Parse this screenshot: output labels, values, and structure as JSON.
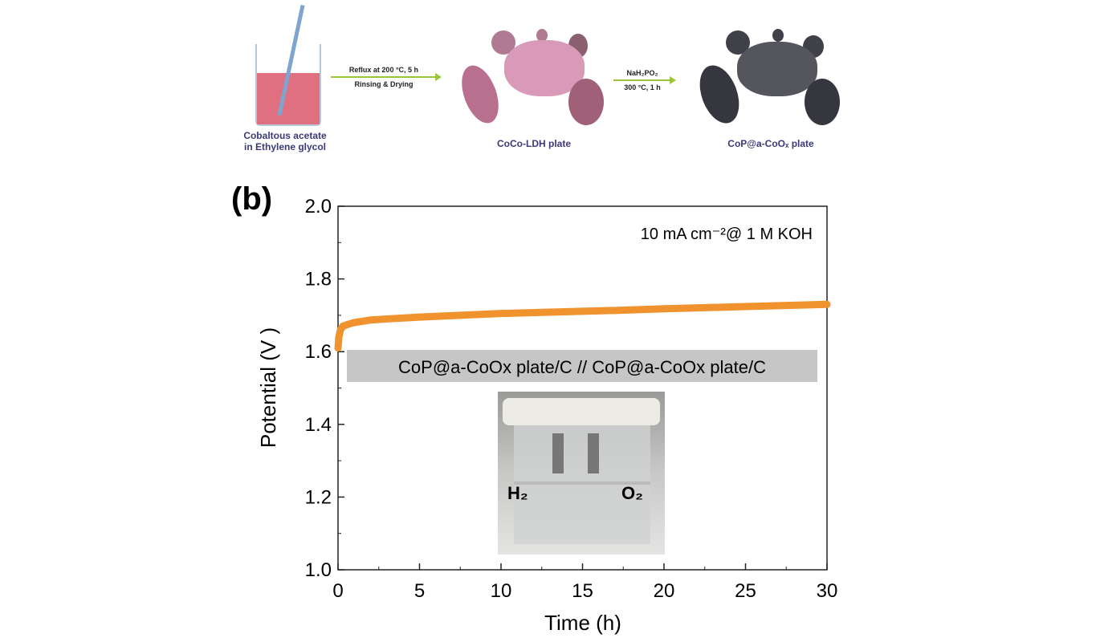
{
  "schematic": {
    "beaker_label": [
      "Cobaltous acetate",
      "in Ethylene glycol"
    ],
    "step1": [
      "Reflux at 200 °C, 5 h",
      "Rinsing & Drying"
    ],
    "intermediate_label": "CoCo-LDH plate",
    "step2": [
      "NaH₂PO₂",
      "300 °C, 1 h"
    ],
    "product_label": "CoP@a-CoOₓ plate",
    "colors": {
      "ldh": "#c98aa6",
      "product": "#3c3c44",
      "arrow": "#9ac43a",
      "liquid": "#e0707f"
    }
  },
  "panel_label": "(b)",
  "chart_data": {
    "type": "line",
    "xlabel": "Time (h)",
    "ylabel": "Potential (V )",
    "xlim": [
      0,
      30
    ],
    "ylim": [
      1.0,
      2.0
    ],
    "xticks": [
      "0",
      "5",
      "10",
      "15",
      "20",
      "25",
      "30"
    ],
    "yticks": [
      "1.0",
      "1.2",
      "1.4",
      "1.6",
      "1.8",
      "2.0"
    ],
    "grid": false,
    "annotation": "10 mA cm⁻²@ 1 M KOH",
    "legend_box": "CoP@a-CoOx plate/C // CoP@a-CoOx plate/C",
    "inset_labels": [
      "H₂",
      "O₂"
    ],
    "series": [
      {
        "color": "#f0922e",
        "x": [
          0,
          0.05,
          0.15,
          0.3,
          0.6,
          1,
          2,
          3,
          5,
          7.5,
          10,
          12.5,
          15,
          17.5,
          20,
          22.5,
          25,
          27.5,
          30
        ],
        "y": [
          1.61,
          1.64,
          1.66,
          1.67,
          1.675,
          1.68,
          1.687,
          1.69,
          1.695,
          1.7,
          1.705,
          1.708,
          1.711,
          1.714,
          1.718,
          1.721,
          1.724,
          1.727,
          1.73
        ]
      }
    ]
  }
}
